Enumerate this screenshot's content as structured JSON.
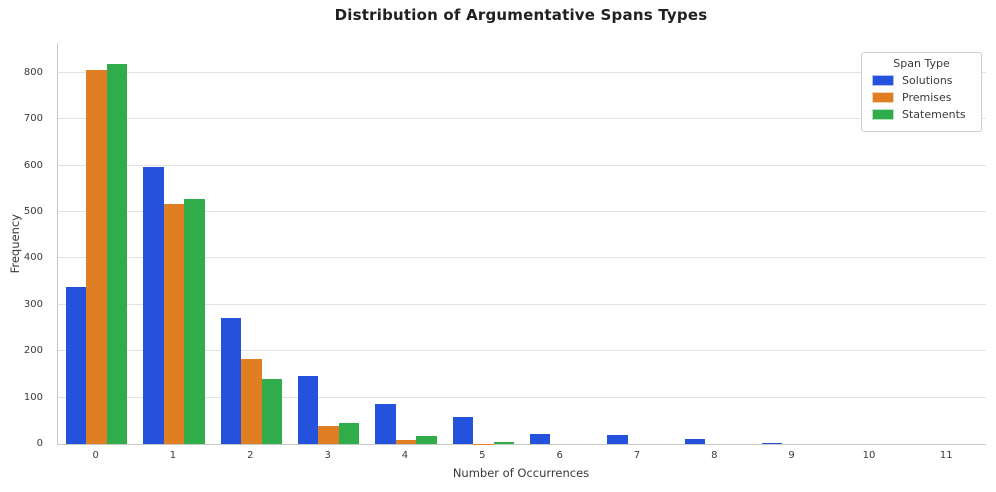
{
  "chart_data": {
    "type": "bar",
    "title": "Distribution of Argumentative Spans Types",
    "xlabel": "Number of Occurrences",
    "ylabel": "Frequency",
    "legend_title": "Span Type",
    "legend_position": "upper right",
    "grid": true,
    "background": "#ffffff",
    "gridline_color": "#e2e2e2",
    "axis_color": "#c9c9c9",
    "text_color": "#3a3a3a",
    "categories": [
      "0",
      "1",
      "2",
      "3",
      "4",
      "5",
      "6",
      "7",
      "8",
      "9",
      "10",
      "11"
    ],
    "y_ticks": [
      0,
      100,
      200,
      300,
      400,
      500,
      600,
      700,
      800
    ],
    "ylim": [
      0,
      864
    ],
    "series": [
      {
        "name": "Solutions",
        "color": "#2452dd",
        "values": [
          338,
          597,
          272,
          146,
          87,
          58,
          22,
          20,
          10,
          3,
          0,
          0
        ]
      },
      {
        "name": "Premises",
        "color": "#df7e23",
        "values": [
          805,
          518,
          184,
          38,
          9,
          1,
          0,
          0,
          0,
          0,
          0,
          0
        ]
      },
      {
        "name": "Statements",
        "color": "#30ac4b",
        "values": [
          819,
          528,
          140,
          45,
          17,
          4,
          0,
          0,
          0,
          0,
          0,
          0
        ]
      }
    ]
  }
}
